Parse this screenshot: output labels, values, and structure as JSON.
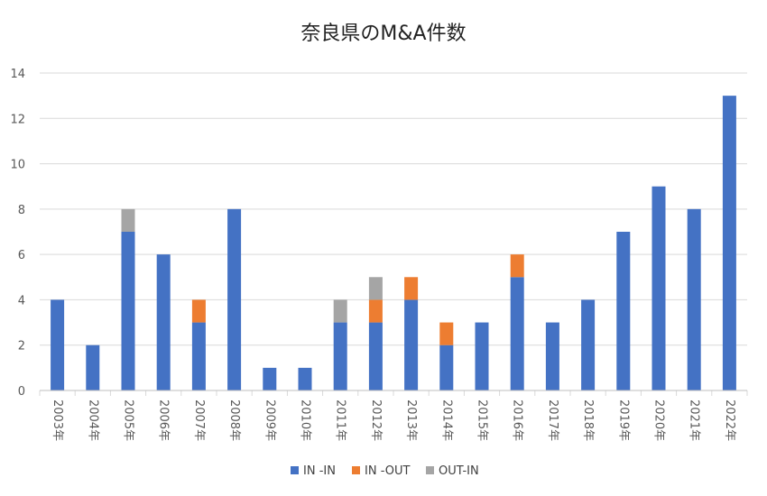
{
  "chart_data": {
    "type": "bar",
    "stacked": true,
    "title": "奈良県のM&A件数",
    "xlabel": "",
    "ylabel": "",
    "categories": [
      "2003年",
      "2004年",
      "2005年",
      "2006年",
      "2007年",
      "2008年",
      "2009年",
      "2010年",
      "2011年",
      "2012年",
      "2013年",
      "2014年",
      "2015年",
      "2016年",
      "2017年",
      "2018年",
      "2019年",
      "2020年",
      "2021年",
      "2022年"
    ],
    "series": [
      {
        "name": "IN -IN",
        "color": "#4472C4",
        "values": [
          4,
          2,
          7,
          6,
          3,
          8,
          1,
          1,
          3,
          3,
          4,
          2,
          3,
          5,
          3,
          4,
          7,
          9,
          8,
          13
        ]
      },
      {
        "name": "IN -OUT",
        "color": "#ED7D31",
        "values": [
          0,
          0,
          0,
          0,
          1,
          0,
          0,
          0,
          0,
          1,
          1,
          1,
          0,
          1,
          0,
          0,
          0,
          0,
          0,
          0
        ]
      },
      {
        "name": "OUT-IN",
        "color": "#A5A5A5",
        "values": [
          0,
          0,
          1,
          0,
          0,
          0,
          0,
          0,
          1,
          1,
          0,
          0,
          0,
          0,
          0,
          0,
          0,
          0,
          0,
          0
        ]
      }
    ],
    "ylim": [
      0,
      14
    ],
    "yticks": [
      0,
      2,
      4,
      6,
      8,
      10,
      12,
      14
    ],
    "grid": true,
    "legend": "bottom"
  }
}
